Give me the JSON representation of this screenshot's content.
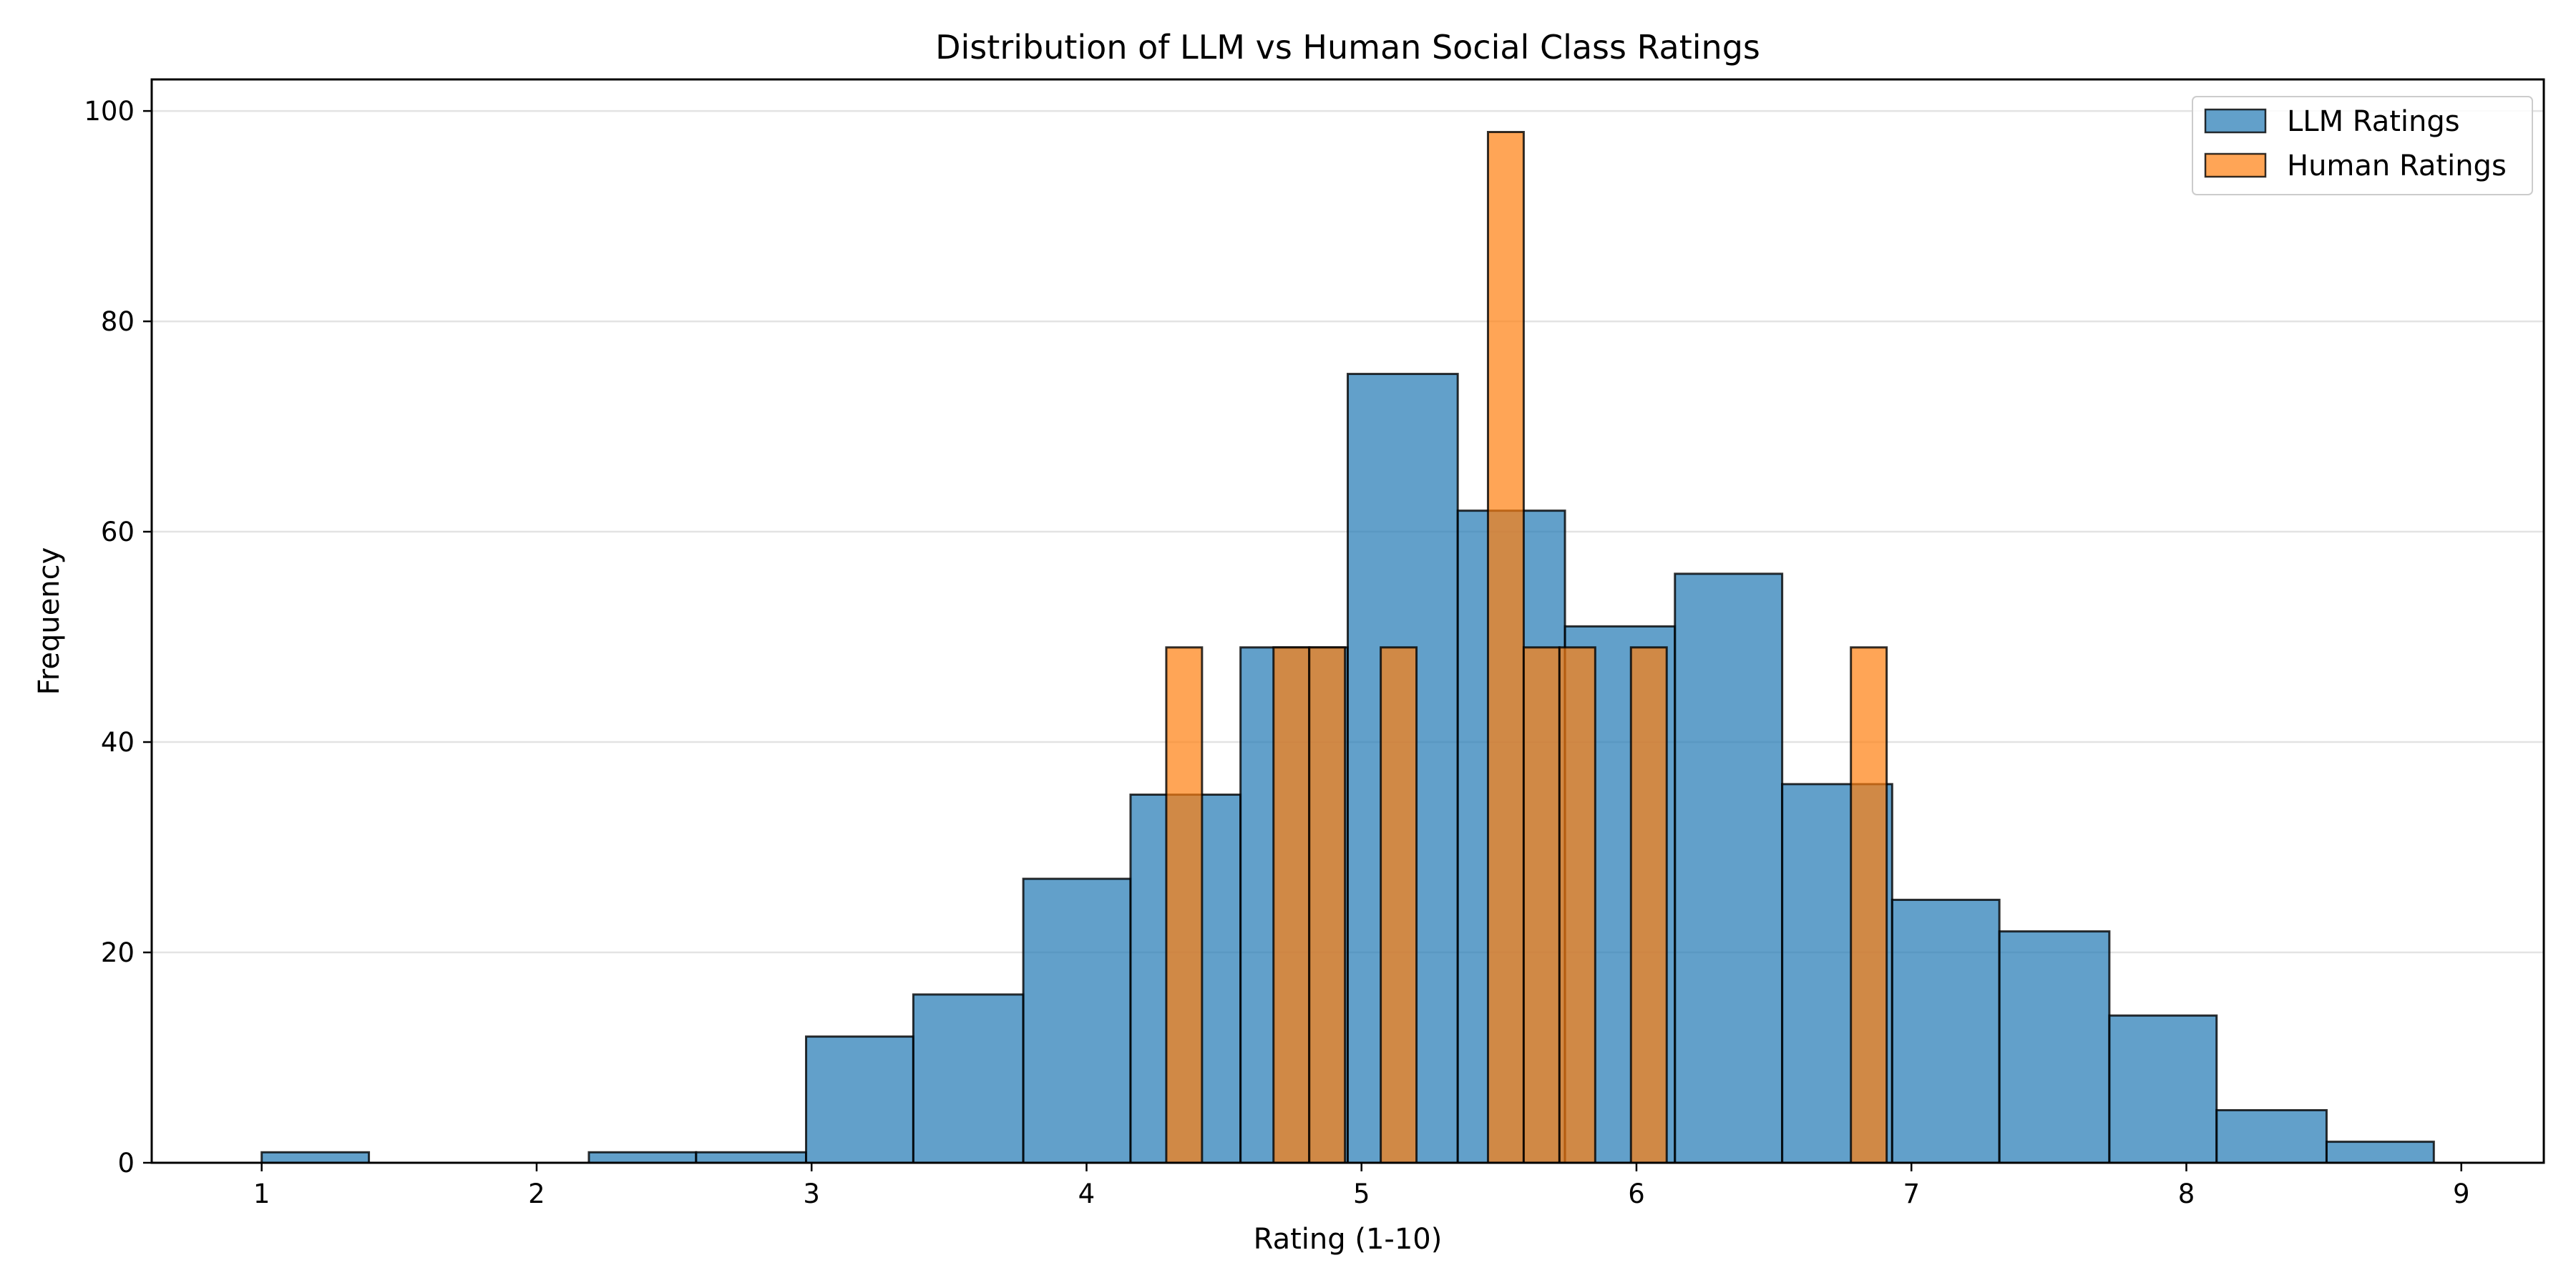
{
  "chart_data": {
    "type": "bar",
    "title": "Distribution of LLM vs Human Social Class Ratings",
    "xlabel": "Rating (1-10)",
    "ylabel": "Frequency",
    "xlim": [
      0.6,
      9.3
    ],
    "ylim": [
      0,
      103
    ],
    "xticks": [
      1,
      2,
      3,
      4,
      5,
      6,
      7,
      8,
      9
    ],
    "yticks": [
      0,
      20,
      40,
      60,
      80,
      100
    ],
    "grid": "horizontal",
    "legend_position": "top-right",
    "series": [
      {
        "name": "LLM Ratings",
        "color": "#1f77b4",
        "bins": [
          {
            "x0": 1.0,
            "x1": 1.39,
            "value": 1
          },
          {
            "x0": 1.39,
            "x1": 1.79,
            "value": 0
          },
          {
            "x0": 1.79,
            "x1": 2.19,
            "value": 0
          },
          {
            "x0": 2.19,
            "x1": 2.58,
            "value": 1
          },
          {
            "x0": 2.58,
            "x1": 2.98,
            "value": 1
          },
          {
            "x0": 2.98,
            "x1": 3.37,
            "value": 12
          },
          {
            "x0": 3.37,
            "x1": 3.77,
            "value": 16
          },
          {
            "x0": 3.77,
            "x1": 4.16,
            "value": 27
          },
          {
            "x0": 4.16,
            "x1": 4.56,
            "value": 35
          },
          {
            "x0": 4.56,
            "x1": 4.95,
            "value": 49
          },
          {
            "x0": 4.95,
            "x1": 5.35,
            "value": 75
          },
          {
            "x0": 5.35,
            "x1": 5.74,
            "value": 62
          },
          {
            "x0": 5.74,
            "x1": 6.14,
            "value": 51
          },
          {
            "x0": 6.14,
            "x1": 6.53,
            "value": 56
          },
          {
            "x0": 6.53,
            "x1": 6.93,
            "value": 36
          },
          {
            "x0": 6.93,
            "x1": 7.32,
            "value": 25
          },
          {
            "x0": 7.32,
            "x1": 7.72,
            "value": 22
          },
          {
            "x0": 7.72,
            "x1": 8.11,
            "value": 14
          },
          {
            "x0": 8.11,
            "x1": 8.51,
            "value": 5
          },
          {
            "x0": 8.51,
            "x1": 8.9,
            "value": 2
          }
        ]
      },
      {
        "name": "Human Ratings",
        "color": "#ff7f0e",
        "bins": [
          {
            "x0": 4.29,
            "x1": 4.42,
            "value": 49
          },
          {
            "x0": 4.68,
            "x1": 4.81,
            "value": 49
          },
          {
            "x0": 4.81,
            "x1": 4.94,
            "value": 49
          },
          {
            "x0": 5.07,
            "x1": 5.2,
            "value": 49
          },
          {
            "x0": 5.46,
            "x1": 5.59,
            "value": 98
          },
          {
            "x0": 5.59,
            "x1": 5.72,
            "value": 49
          },
          {
            "x0": 5.72,
            "x1": 5.85,
            "value": 49
          },
          {
            "x0": 5.98,
            "x1": 6.11,
            "value": 49
          },
          {
            "x0": 6.78,
            "x1": 6.91,
            "value": 49
          }
        ]
      }
    ]
  }
}
